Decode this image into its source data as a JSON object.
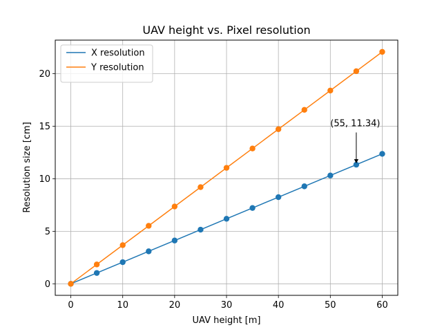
{
  "chart_data": {
    "type": "line",
    "title": "UAV height vs. Pixel resolution",
    "xlabel": "UAV height [m]",
    "ylabel": "Resolution size [cm]",
    "xlim": [
      -3,
      63
    ],
    "ylim": [
      -1.1,
      23.2
    ],
    "xticks": [
      0,
      10,
      20,
      30,
      40,
      50,
      60
    ],
    "yticks": [
      0,
      5,
      10,
      15,
      20
    ],
    "grid": true,
    "legend_position": "upper-left",
    "x": [
      0,
      5,
      10,
      15,
      20,
      25,
      30,
      35,
      40,
      45,
      50,
      55,
      60
    ],
    "series": [
      {
        "name": "X resolution",
        "color": "#1f77b4",
        "values": [
          0,
          1.03,
          2.06,
          3.09,
          4.12,
          5.15,
          6.19,
          7.22,
          8.25,
          9.28,
          10.31,
          11.34,
          12.37
        ]
      },
      {
        "name": "Y resolution",
        "color": "#ff7f0e",
        "values": [
          0,
          1.84,
          3.68,
          5.52,
          7.36,
          9.2,
          11.04,
          12.88,
          14.72,
          16.56,
          18.4,
          20.24,
          22.08
        ]
      }
    ],
    "annotation": {
      "text": "(55, 11.34)",
      "x": 55,
      "y": 11.34,
      "text_x": 50,
      "text_y": 15
    }
  }
}
